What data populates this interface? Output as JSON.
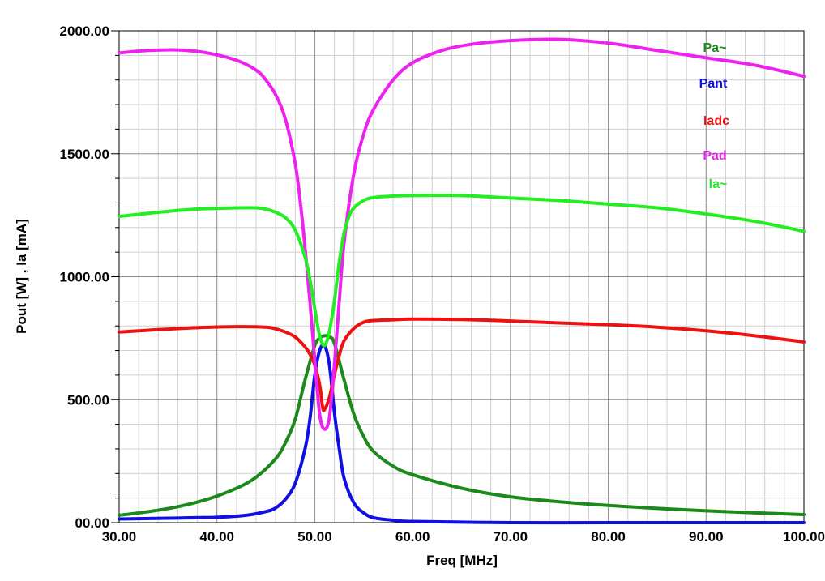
{
  "chart_data": {
    "type": "line",
    "title": "",
    "xlabel": "Freq [MHz]",
    "ylabel": "Pout [W] , Ia [mA]",
    "xlim": [
      30,
      100
    ],
    "ylim": [
      0,
      2000
    ],
    "grid": true,
    "legend_position": "top-right",
    "x_ticks": [
      "30.00",
      "40.00",
      "50.00",
      "60.00",
      "70.00",
      "80.00",
      "90.00",
      "100.00"
    ],
    "y_ticks": [
      "00.00",
      "500.00",
      "1000.00",
      "1500.00",
      "2000.00"
    ],
    "series": [
      {
        "name": "Pa~",
        "color": "#1a8a1a",
        "x": [
          30,
          33,
          36,
          39,
          42,
          44,
          46,
          47,
          48,
          49,
          50,
          50.5,
          51,
          51.5,
          52,
          53,
          54,
          55,
          56,
          58,
          60,
          65,
          70,
          75,
          80,
          85,
          90,
          95,
          100
        ],
        "y": [
          30,
          45,
          65,
          95,
          140,
          185,
          260,
          325,
          420,
          580,
          720,
          750,
          760,
          755,
          730,
          580,
          440,
          350,
          290,
          230,
          195,
          140,
          105,
          85,
          70,
          58,
          48,
          40,
          33
        ]
      },
      {
        "name": "Pant",
        "color": "#1010e0",
        "x": [
          30,
          35,
          40,
          43,
          45,
          46,
          47,
          48,
          49,
          49.5,
          50,
          50.5,
          51,
          51.5,
          52,
          52.5,
          53,
          54,
          55,
          56,
          58,
          60,
          70,
          80,
          90,
          100
        ],
        "y": [
          15,
          18,
          22,
          30,
          45,
          60,
          95,
          160,
          300,
          420,
          600,
          700,
          720,
          640,
          450,
          300,
          180,
          80,
          40,
          20,
          10,
          5,
          0,
          0,
          0,
          0
        ]
      },
      {
        "name": "Iadc",
        "color": "#ee1111",
        "x": [
          30,
          34,
          38,
          42,
          45,
          46,
          47,
          48,
          49,
          49.5,
          50,
          50.5,
          50.8,
          51,
          51.5,
          52,
          52.5,
          53,
          54,
          55,
          56,
          58,
          60,
          65,
          70,
          75,
          80,
          85,
          90,
          95,
          100
        ],
        "y": [
          775,
          785,
          793,
          797,
          795,
          788,
          775,
          755,
          715,
          685,
          640,
          560,
          470,
          460,
          510,
          600,
          680,
          740,
          790,
          815,
          822,
          825,
          828,
          826,
          820,
          812,
          805,
          795,
          780,
          760,
          735
        ]
      },
      {
        "name": "Pad",
        "color": "#ee22ee",
        "x": [
          30,
          33,
          36,
          39,
          42,
          44,
          45,
          46,
          47,
          48,
          48.5,
          49,
          49.5,
          50,
          50.5,
          51,
          51.5,
          52,
          52.5,
          53,
          54,
          55,
          56,
          58,
          60,
          63,
          66,
          70,
          75,
          80,
          85,
          90,
          95,
          100
        ],
        "y": [
          1910,
          1920,
          1922,
          1910,
          1880,
          1840,
          1800,
          1740,
          1640,
          1460,
          1310,
          1120,
          900,
          660,
          440,
          380,
          430,
          640,
          900,
          1140,
          1420,
          1580,
          1680,
          1800,
          1870,
          1920,
          1945,
          1960,
          1965,
          1950,
          1920,
          1890,
          1860,
          1815
        ]
      },
      {
        "name": "Ia~",
        "color": "#22ee22",
        "x": [
          30,
          34,
          38,
          42,
          44,
          45,
          46,
          47,
          48,
          49,
          49.5,
          50,
          50.5,
          51,
          51.5,
          52,
          52.5,
          53,
          53.5,
          54,
          55,
          56,
          58,
          60,
          65,
          70,
          75,
          80,
          85,
          90,
          95,
          100
        ],
        "y": [
          1245,
          1262,
          1275,
          1280,
          1280,
          1275,
          1262,
          1240,
          1190,
          1080,
          990,
          870,
          760,
          720,
          780,
          900,
          1060,
          1180,
          1245,
          1280,
          1310,
          1322,
          1328,
          1330,
          1330,
          1320,
          1310,
          1295,
          1280,
          1255,
          1225,
          1185
        ]
      }
    ]
  }
}
